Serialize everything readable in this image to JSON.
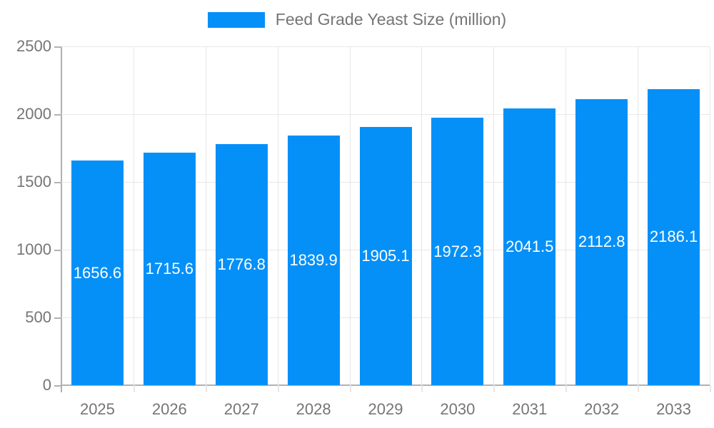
{
  "legend": {
    "label": "Feed Grade Yeast Size (million)"
  },
  "colors": {
    "bar": "#0590F8",
    "grid": "#e7e7e7",
    "axis": "#b1b1b1",
    "tick_label": "#757575",
    "value_label": "#ffffff",
    "background": "#ffffff"
  },
  "chart_data": {
    "type": "bar",
    "title": "Feed Grade Yeast Size (million)",
    "categories": [
      "2025",
      "2026",
      "2027",
      "2028",
      "2029",
      "2030",
      "2031",
      "2032",
      "2033"
    ],
    "series": [
      {
        "name": "Feed Grade Yeast Size (million)",
        "values": [
          1656.6,
          1715.6,
          1776.8,
          1839.9,
          1905.1,
          1972.3,
          2041.5,
          2112.8,
          2186.1
        ]
      }
    ],
    "xlabel": "",
    "ylabel": "",
    "ylim": [
      0,
      2500
    ],
    "ytick_step": 500,
    "grid": true,
    "legend_position": "top",
    "value_labels": "inside-center"
  }
}
